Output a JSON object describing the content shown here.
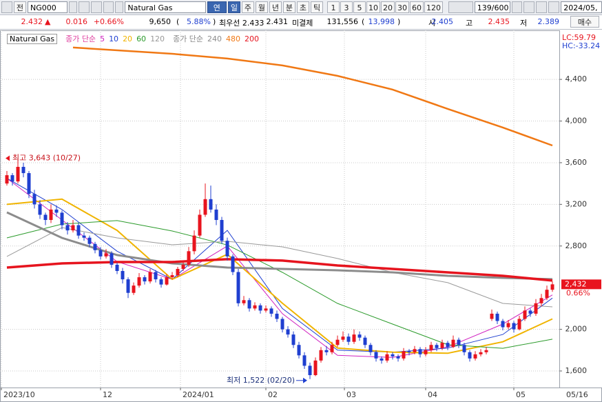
{
  "toolbar": {
    "code_label": "전",
    "code": "NG000",
    "name": "Natural Gas",
    "periods": [
      "연결",
      "일",
      "주",
      "월",
      "년",
      "분",
      "초",
      "틱"
    ],
    "active_periods": [
      0,
      1
    ],
    "intervals": [
      "1",
      "3",
      "5",
      "10",
      "20",
      "30",
      "60",
      "120"
    ],
    "count": "139/600",
    "date": "2024/05,"
  },
  "quote": {
    "price": "2.432",
    "arrow": "▲",
    "change": "0.016",
    "change_pct": "+0.66%",
    "volume": "9,650",
    "paren_open": "(",
    "volume_pct": "5.88%",
    "paren_close": ")",
    "best": "최우선 2.433",
    "best2": "2.431",
    "oi_label": "미결제",
    "oi": "131,556",
    "oi_change": "13,998",
    "open_label": "시",
    "open": "2.405",
    "high_label": "고",
    "high": "2.435",
    "low_label": "저",
    "low": "2.389",
    "order": "매수"
  },
  "chart_data": {
    "type": "candlestick",
    "legend_title": "Natural Gas",
    "up_color": "#e8141e",
    "down_color": "#1f3fd0",
    "xlim": [
      -1.25,
      100.25
    ],
    "ylim": [
      1441,
      4871
    ],
    "xticks": [
      {
        "value": -1,
        "label": "2023/10"
      },
      {
        "value": 17,
        "label": "12"
      },
      {
        "value": 31.5,
        "label": "2024/01"
      },
      {
        "value": 47,
        "label": "02"
      },
      {
        "value": 61.25,
        "label": "03"
      },
      {
        "value": 76,
        "label": "04"
      },
      {
        "value": 92,
        "label": "05"
      }
    ],
    "yticks": [
      {
        "value": 1600,
        "label": "1,600"
      },
      {
        "value": 2000,
        "label": "2,000"
      },
      {
        "value": 2800,
        "label": "2,800"
      },
      {
        "value": 3200,
        "label": "3,200"
      },
      {
        "value": 3600,
        "label": "3,600"
      },
      {
        "value": 4000,
        "label": "4,000"
      },
      {
        "value": 4400,
        "label": "4,400"
      }
    ],
    "grid": true,
    "last_date": "05/16",
    "lc": "LC:59.79",
    "hc": "HC:-33.24",
    "last_price": {
      "value": 2432,
      "label": "2,432"
    },
    "last_pct": "0.66%",
    "high_note": "최고 3,643 (10/27)",
    "low_note": "최저 1,522 (02/20)",
    "candles": [
      [
        3400,
        3520,
        3380,
        3480
      ],
      [
        3480,
        3500,
        3380,
        3420
      ],
      [
        3420,
        3643,
        3400,
        3560
      ],
      [
        3560,
        3600,
        3460,
        3500
      ],
      [
        3500,
        3520,
        3260,
        3300
      ],
      [
        3300,
        3340,
        3160,
        3200
      ],
      [
        3200,
        3240,
        3060,
        3100
      ],
      [
        3100,
        3120,
        3000,
        3050
      ],
      [
        3050,
        3200,
        3020,
        3150
      ],
      [
        3150,
        3190,
        3080,
        3120
      ],
      [
        3120,
        3140,
        2960,
        3000
      ],
      [
        3000,
        3030,
        2910,
        2950
      ],
      [
        2950,
        3050,
        2930,
        3000
      ],
      [
        3000,
        3020,
        2870,
        2900
      ],
      [
        2900,
        2930,
        2850,
        2880
      ],
      [
        2880,
        2900,
        2790,
        2820
      ],
      [
        2820,
        2840,
        2730,
        2760
      ],
      [
        2760,
        2790,
        2670,
        2700
      ],
      [
        2700,
        2770,
        2680,
        2730
      ],
      [
        2730,
        2750,
        2590,
        2620
      ],
      [
        2620,
        2640,
        2530,
        2560
      ],
      [
        2560,
        2590,
        2440,
        2480
      ],
      [
        2480,
        2500,
        2300,
        2350
      ],
      [
        2350,
        2450,
        2330,
        2420
      ],
      [
        2420,
        2540,
        2400,
        2500
      ],
      [
        2500,
        2520,
        2430,
        2460
      ],
      [
        2460,
        2580,
        2440,
        2550
      ],
      [
        2550,
        2570,
        2450,
        2480
      ],
      [
        2480,
        2500,
        2400,
        2430
      ],
      [
        2430,
        2530,
        2420,
        2500
      ],
      [
        2500,
        2550,
        2480,
        2520
      ],
      [
        2520,
        2600,
        2500,
        2580
      ],
      [
        2580,
        2660,
        2560,
        2620
      ],
      [
        2620,
        2790,
        2600,
        2750
      ],
      [
        2750,
        2950,
        2720,
        2900
      ],
      [
        2900,
        3150,
        2880,
        3100
      ],
      [
        3100,
        3400,
        3080,
        3250
      ],
      [
        3250,
        3380,
        3120,
        3150
      ],
      [
        3150,
        3200,
        3000,
        3050
      ],
      [
        3050,
        3080,
        2820,
        2850
      ],
      [
        2850,
        2880,
        2660,
        2700
      ],
      [
        2700,
        2720,
        2520,
        2550
      ],
      [
        2550,
        2580,
        2220,
        2250
      ],
      [
        2250,
        2320,
        2230,
        2280
      ],
      [
        2280,
        2300,
        2170,
        2200
      ],
      [
        2200,
        2260,
        2180,
        2230
      ],
      [
        2230,
        2250,
        2150,
        2180
      ],
      [
        2180,
        2230,
        2160,
        2200
      ],
      [
        2200,
        2220,
        2120,
        2150
      ],
      [
        2150,
        2180,
        2070,
        2100
      ],
      [
        2100,
        2120,
        1970,
        2000
      ],
      [
        2000,
        2030,
        1920,
        1950
      ],
      [
        1950,
        1980,
        1820,
        1850
      ],
      [
        1850,
        1880,
        1720,
        1750
      ],
      [
        1750,
        1780,
        1620,
        1650
      ],
      [
        1650,
        1680,
        1522,
        1560
      ],
      [
        1560,
        1730,
        1550,
        1700
      ],
      [
        1700,
        1830,
        1680,
        1800
      ],
      [
        1800,
        1840,
        1750,
        1780
      ],
      [
        1780,
        1880,
        1760,
        1850
      ],
      [
        1850,
        1940,
        1830,
        1900
      ],
      [
        1900,
        1980,
        1880,
        1930
      ],
      [
        1930,
        1960,
        1850,
        1880
      ],
      [
        1880,
        2000,
        1860,
        1950
      ],
      [
        1950,
        1980,
        1890,
        1920
      ],
      [
        1920,
        1940,
        1820,
        1850
      ],
      [
        1850,
        1870,
        1750,
        1780
      ],
      [
        1780,
        1800,
        1690,
        1720
      ],
      [
        1720,
        1740,
        1670,
        1700
      ],
      [
        1700,
        1790,
        1680,
        1760
      ],
      [
        1760,
        1780,
        1710,
        1740
      ],
      [
        1740,
        1760,
        1690,
        1720
      ],
      [
        1720,
        1820,
        1700,
        1790
      ],
      [
        1790,
        1810,
        1750,
        1780
      ],
      [
        1780,
        1840,
        1760,
        1810
      ],
      [
        1810,
        1830,
        1730,
        1760
      ],
      [
        1760,
        1830,
        1740,
        1800
      ],
      [
        1800,
        1880,
        1780,
        1850
      ],
      [
        1850,
        1870,
        1790,
        1820
      ],
      [
        1820,
        1900,
        1800,
        1870
      ],
      [
        1870,
        1890,
        1800,
        1830
      ],
      [
        1830,
        1940,
        1820,
        1900
      ],
      [
        1900,
        1920,
        1820,
        1850
      ],
      [
        1850,
        1870,
        1750,
        1780
      ],
      [
        1780,
        1800,
        1690,
        1720
      ],
      [
        1720,
        1790,
        1700,
        1760
      ],
      [
        1760,
        1810,
        1740,
        1780
      ],
      [
        1780,
        1830,
        1760,
        1800
      ],
      [
        2100,
        2190,
        2080,
        2150
      ],
      [
        2150,
        2170,
        2050,
        2080
      ],
      [
        2080,
        2100,
        1990,
        2020
      ],
      [
        2020,
        2090,
        2000,
        2060
      ],
      [
        2060,
        2080,
        1970,
        2000
      ],
      [
        2000,
        2130,
        1990,
        2100
      ],
      [
        2100,
        2220,
        2080,
        2180
      ],
      [
        2180,
        2200,
        2120,
        2150
      ],
      [
        2150,
        2290,
        2130,
        2250
      ],
      [
        2250,
        2340,
        2220,
        2300
      ],
      [
        2300,
        2420,
        2280,
        2380
      ],
      [
        2380,
        2460,
        2360,
        2432
      ]
    ],
    "ma_groups": [
      {
        "name": "종가 단순",
        "color": "#e040a0",
        "series": [
          {
            "name": "5",
            "color": "#d020c0",
            "width": 1,
            "x": [
              0,
              10,
              20,
              30,
              40,
              50,
              60,
              70,
              80,
              90,
              99
            ],
            "values": [
              3450,
              3050,
              2650,
              2480,
              2800,
              2150,
              1750,
              1730,
              1830,
              2050,
              2330
            ]
          },
          {
            "name": "10",
            "color": "#1f3fd0",
            "width": 1,
            "x": [
              0,
              10,
              20,
              30,
              40,
              50,
              60,
              70,
              80,
              90,
              99
            ],
            "values": [
              3450,
              3150,
              2750,
              2480,
              2950,
              2200,
              1800,
              1780,
              1820,
              1950,
              2300
            ]
          },
          {
            "name": "20",
            "color": "#f0b400",
            "width": 2,
            "x": [
              0,
              10,
              20,
              30,
              40,
              50,
              60,
              70,
              80,
              90,
              99
            ],
            "values": [
              3200,
              3250,
              2950,
              2480,
              2720,
              2250,
              1820,
              1780,
              1770,
              1880,
              2100
            ]
          },
          {
            "name": "60",
            "color": "#2a9a2a",
            "width": 1,
            "x": [
              0,
              10,
              20,
              30,
              40,
              50,
              60,
              70,
              80,
              90,
              99
            ],
            "values": [
              2878,
              3010,
              3044,
              2944,
              2810,
              2547,
              2249,
              2050,
              1852,
              1818,
              1905
            ]
          },
          {
            "name": "120",
            "color": "#999999",
            "width": 1,
            "x": [
              0,
              10,
              20,
              30,
              40,
              50,
              60,
              70,
              80,
              90,
              99
            ],
            "values": [
              2700,
              2977,
              2878,
              2812,
              2845,
              2792,
              2680,
              2547,
              2448,
              2249,
              2216
            ]
          }
        ]
      },
      {
        "name": "종가 단순",
        "color": "#888888",
        "series": [
          {
            "name": "240",
            "color": "#8c8c8c",
            "width": 3,
            "x": [
              0,
              10,
              20,
              30,
              40,
              50,
              60,
              70,
              80,
              90,
              99
            ],
            "values": [
              3123,
              2878,
              2713,
              2633,
              2593,
              2580,
              2567,
              2547,
              2514,
              2494,
              2481
            ]
          },
          {
            "name": "480",
            "color": "#f07814",
            "width": 2.5,
            "x": [
              12,
              30,
              40,
              50,
              60,
              70,
              80,
              90,
              99
            ],
            "values": [
              4706,
              4646,
              4600,
              4534,
              4434,
              4302,
              4117,
              3938,
              3765
            ]
          },
          {
            "name": "200",
            "color": "#e6141e",
            "width": 3.5,
            "x": [
              0,
              10,
              20,
              30,
              40,
              50,
              60,
              70,
              80,
              90,
              99
            ],
            "values": [
              2593,
              2633,
              2646,
              2646,
              2673,
              2660,
              2613,
              2580,
              2547,
              2514,
              2468
            ]
          }
        ]
      }
    ]
  }
}
